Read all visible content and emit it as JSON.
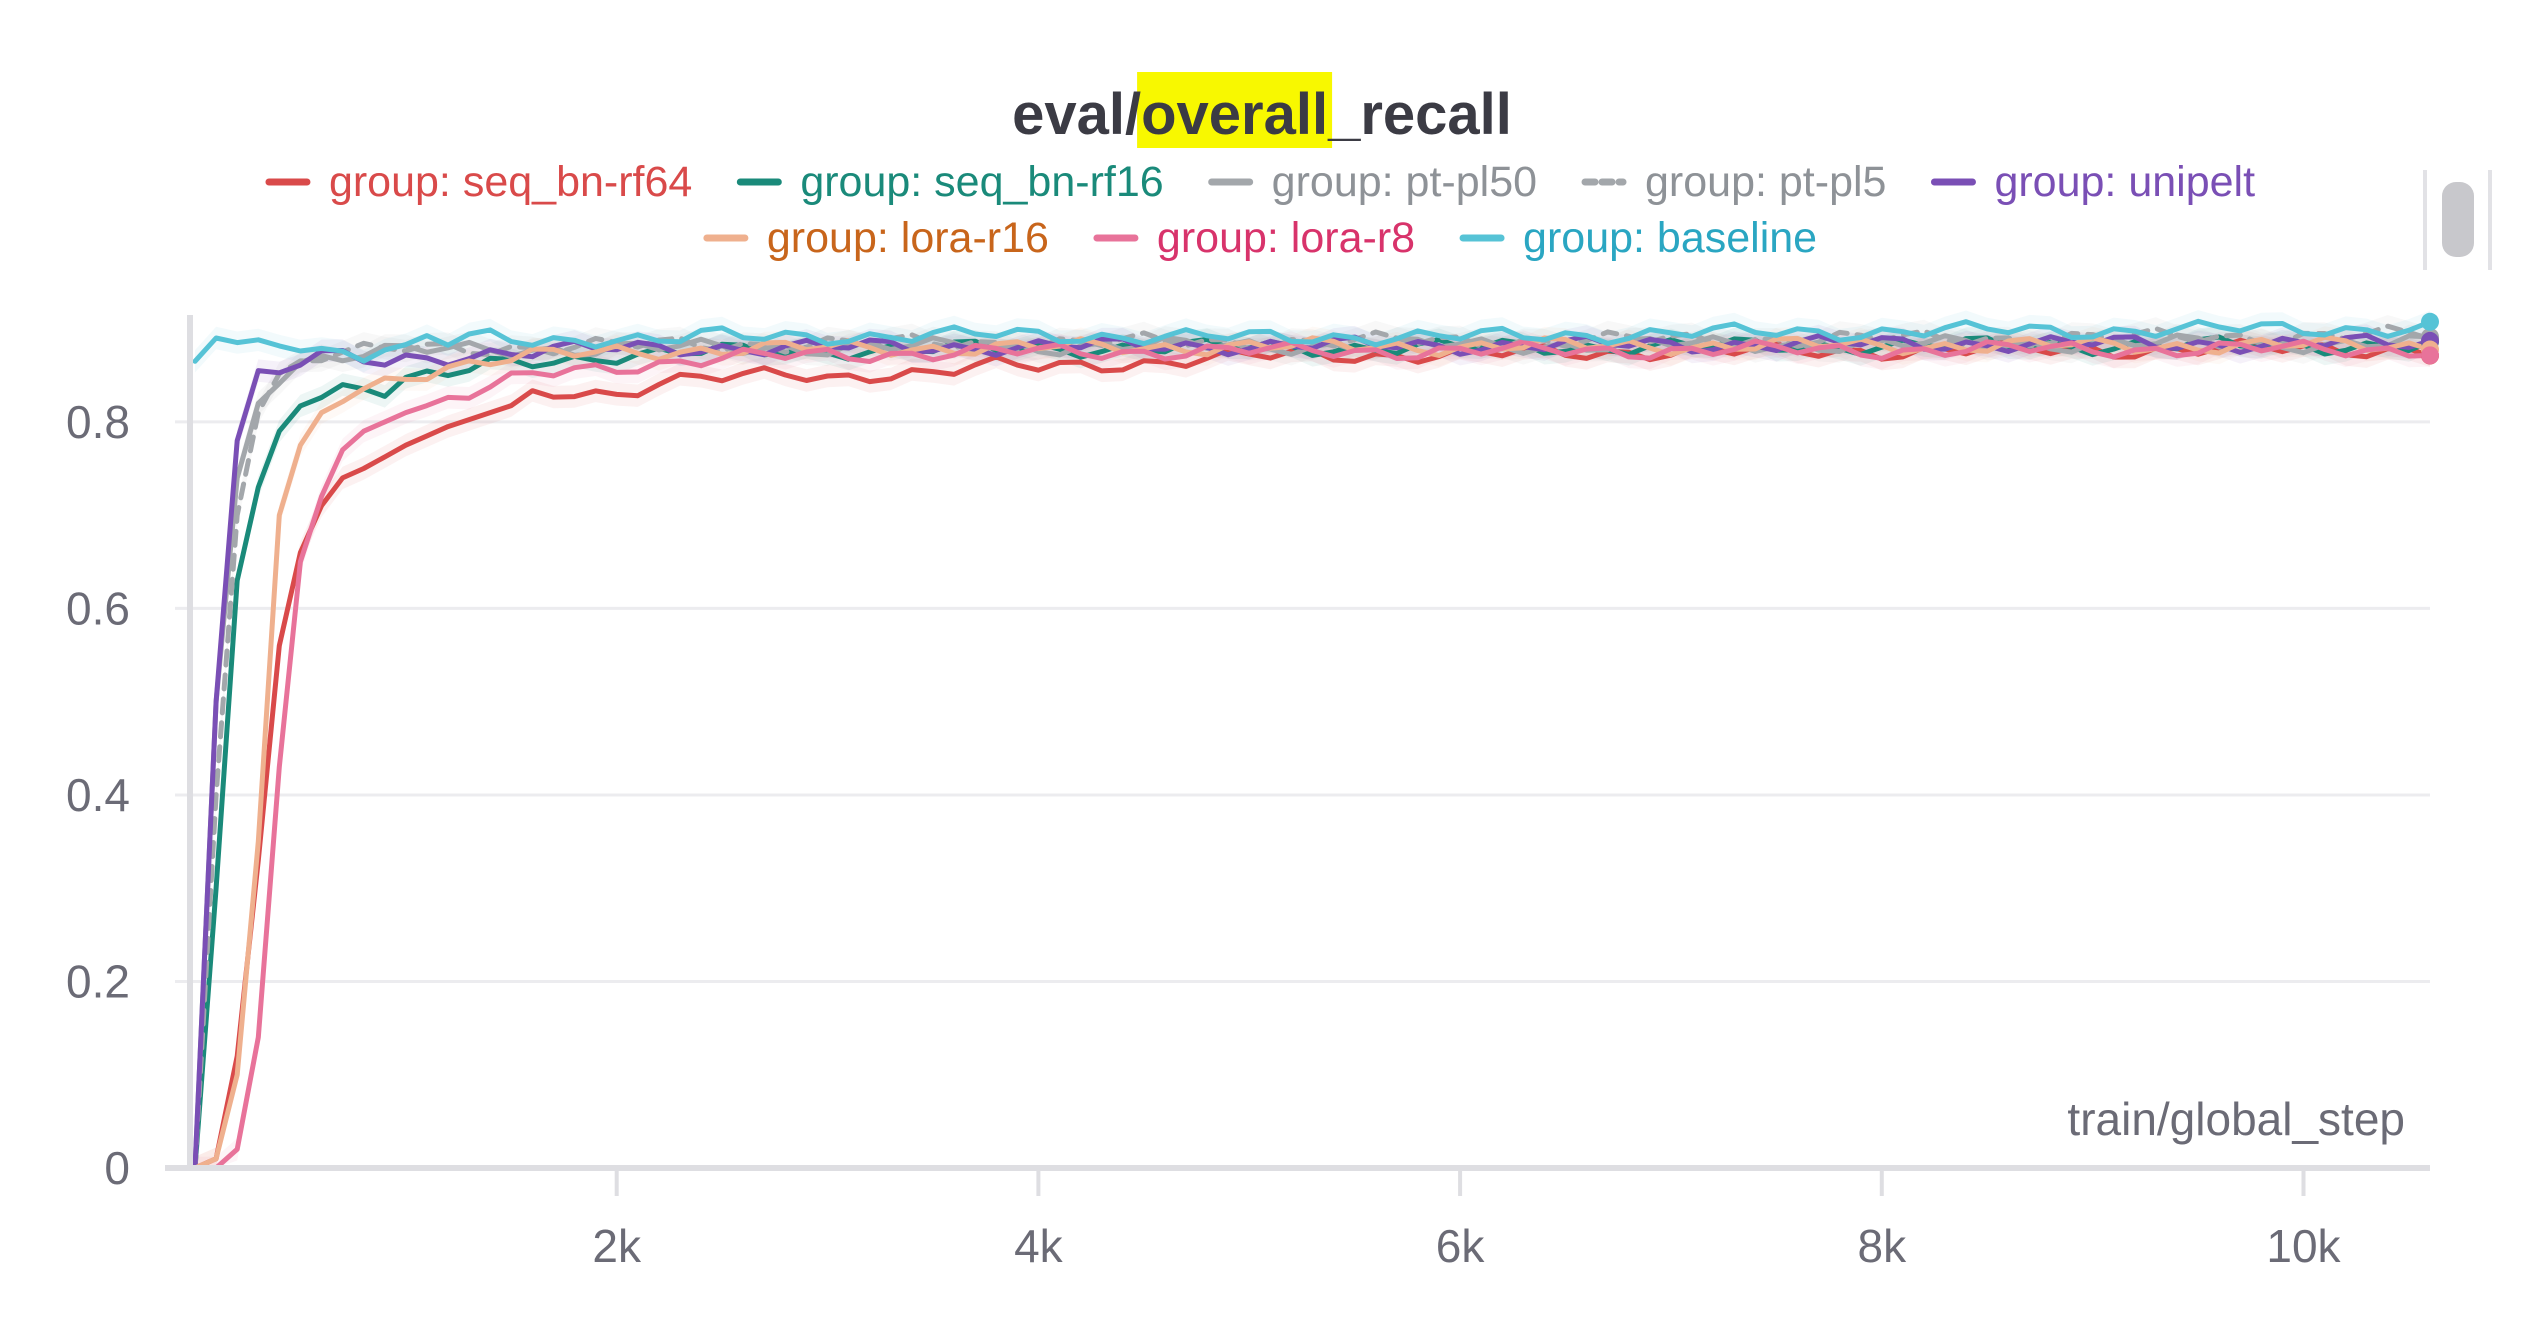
{
  "chart_data": {
    "type": "line",
    "title_parts": {
      "prefix": "eval/",
      "highlight": "overall",
      "suffix": "_recall"
    },
    "highlight_color": "#f8f800",
    "xlabel": "train/global_step",
    "ylabel": "",
    "xlim": [
      0,
      10600
    ],
    "ylim": [
      0,
      0.92
    ],
    "x_ticks": [
      {
        "value": 2000,
        "label": "2k"
      },
      {
        "value": 4000,
        "label": "4k"
      },
      {
        "value": 6000,
        "label": "6k"
      },
      {
        "value": 8000,
        "label": "8k"
      },
      {
        "value": 10000,
        "label": "10k"
      }
    ],
    "y_ticks": [
      {
        "value": 0,
        "label": "0"
      },
      {
        "value": 0.2,
        "label": "0.2"
      },
      {
        "value": 0.4,
        "label": "0.4"
      },
      {
        "value": 0.6,
        "label": "0.6"
      },
      {
        "value": 0.8,
        "label": "0.8"
      }
    ],
    "grid": true,
    "legend_position": "top",
    "series": [
      {
        "key": "seq_bn_rf64",
        "name": "group: seq_bn-rf64",
        "color": "#d94a4a",
        "text_color": "#d94a4a",
        "dashed": false,
        "points": [
          [
            0,
            0
          ],
          [
            100,
            0.01
          ],
          [
            200,
            0.12
          ],
          [
            300,
            0.33
          ],
          [
            400,
            0.56
          ],
          [
            500,
            0.66
          ],
          [
            600,
            0.71
          ],
          [
            700,
            0.74
          ],
          [
            800,
            0.75
          ],
          [
            1000,
            0.775
          ],
          [
            1200,
            0.795
          ],
          [
            1400,
            0.81
          ],
          [
            1600,
            0.825
          ],
          [
            1800,
            0.832
          ],
          [
            2000,
            0.83
          ],
          [
            2200,
            0.845
          ],
          [
            2400,
            0.848
          ],
          [
            2600,
            0.847
          ],
          [
            2800,
            0.85
          ],
          [
            3000,
            0.846
          ],
          [
            3200,
            0.852
          ],
          [
            3500,
            0.854
          ],
          [
            3800,
            0.86
          ],
          [
            4000,
            0.858
          ],
          [
            4300,
            0.862
          ],
          [
            4600,
            0.865
          ],
          [
            5000,
            0.87
          ],
          [
            5500,
            0.872
          ],
          [
            6000,
            0.872
          ],
          [
            6500,
            0.874
          ],
          [
            7000,
            0.876
          ],
          [
            7500,
            0.875
          ],
          [
            8000,
            0.876
          ],
          [
            8500,
            0.877
          ],
          [
            9000,
            0.877
          ],
          [
            9500,
            0.878
          ],
          [
            10000,
            0.878
          ],
          [
            10600,
            0.878
          ]
        ]
      },
      {
        "key": "seq_bn_rf16",
        "name": "group: seq_bn-rf16",
        "color": "#1a8a7a",
        "text_color": "#1a8a7a",
        "dashed": false,
        "points": [
          [
            0,
            0
          ],
          [
            100,
            0.3
          ],
          [
            200,
            0.63
          ],
          [
            300,
            0.73
          ],
          [
            400,
            0.79
          ],
          [
            500,
            0.825
          ],
          [
            600,
            0.83
          ],
          [
            700,
            0.838
          ],
          [
            800,
            0.84
          ],
          [
            900,
            0.835
          ],
          [
            1000,
            0.845
          ],
          [
            1200,
            0.85
          ],
          [
            1400,
            0.86
          ],
          [
            1600,
            0.865
          ],
          [
            1800,
            0.868
          ],
          [
            2000,
            0.872
          ],
          [
            2500,
            0.875
          ],
          [
            3000,
            0.877
          ],
          [
            3500,
            0.878
          ],
          [
            4000,
            0.879
          ],
          [
            5000,
            0.88
          ],
          [
            6000,
            0.88
          ],
          [
            7000,
            0.881
          ],
          [
            8000,
            0.882
          ],
          [
            9000,
            0.882
          ],
          [
            10000,
            0.882
          ],
          [
            10600,
            0.882
          ]
        ]
      },
      {
        "key": "pt_pl50",
        "name": "group: pt-pl50",
        "color": "#a3a7ab",
        "text_color": "#8e9297",
        "dashed": false,
        "points": [
          [
            0,
            0
          ],
          [
            100,
            0.5
          ],
          [
            200,
            0.74
          ],
          [
            300,
            0.82
          ],
          [
            400,
            0.85
          ],
          [
            500,
            0.865
          ],
          [
            600,
            0.87
          ],
          [
            700,
            0.872
          ],
          [
            800,
            0.874
          ],
          [
            1000,
            0.876
          ],
          [
            1500,
            0.878
          ],
          [
            2000,
            0.879
          ],
          [
            3000,
            0.88
          ],
          [
            4000,
            0.881
          ],
          [
            5000,
            0.882
          ],
          [
            6000,
            0.882
          ],
          [
            7000,
            0.883
          ],
          [
            8000,
            0.883
          ],
          [
            9000,
            0.884
          ],
          [
            10000,
            0.884
          ],
          [
            10600,
            0.884
          ]
        ]
      },
      {
        "key": "pt_pl5",
        "name": "group: pt-pl5",
        "color": "#a3a7ab",
        "text_color": "#8e9297",
        "dashed": true,
        "points": [
          [
            0,
            0
          ],
          [
            100,
            0.4
          ],
          [
            200,
            0.7
          ],
          [
            300,
            0.81
          ],
          [
            400,
            0.85
          ],
          [
            500,
            0.866
          ],
          [
            600,
            0.872
          ],
          [
            800,
            0.875
          ],
          [
            1000,
            0.878
          ],
          [
            1500,
            0.88
          ],
          [
            2000,
            0.882
          ],
          [
            3000,
            0.884
          ],
          [
            4000,
            0.885
          ],
          [
            5000,
            0.886
          ],
          [
            6000,
            0.887
          ],
          [
            7000,
            0.888
          ],
          [
            8000,
            0.889
          ],
          [
            9000,
            0.89
          ],
          [
            10000,
            0.892
          ],
          [
            10600,
            0.893
          ]
        ]
      },
      {
        "key": "unipelt",
        "name": "group: unipelt",
        "color": "#7a4fb5",
        "text_color": "#7a4fb5",
        "dashed": false,
        "points": [
          [
            0,
            0
          ],
          [
            100,
            0.5
          ],
          [
            200,
            0.78
          ],
          [
            300,
            0.855
          ],
          [
            400,
            0.855
          ],
          [
            500,
            0.865
          ],
          [
            600,
            0.87
          ],
          [
            700,
            0.868
          ],
          [
            800,
            0.865
          ],
          [
            900,
            0.862
          ],
          [
            1000,
            0.866
          ],
          [
            1200,
            0.87
          ],
          [
            1400,
            0.875
          ],
          [
            1600,
            0.876
          ],
          [
            1800,
            0.878
          ],
          [
            2000,
            0.878
          ],
          [
            2500,
            0.88
          ],
          [
            3000,
            0.88
          ],
          [
            4000,
            0.881
          ],
          [
            5000,
            0.882
          ],
          [
            6000,
            0.882
          ],
          [
            7000,
            0.883
          ],
          [
            8000,
            0.884
          ],
          [
            9000,
            0.884
          ],
          [
            10000,
            0.884
          ],
          [
            10600,
            0.884
          ]
        ]
      },
      {
        "key": "lora_r16",
        "name": "group: lora-r16",
        "color": "#efb08e",
        "text_color": "#c8651b",
        "dashed": false,
        "points": [
          [
            0,
            0
          ],
          [
            100,
            0.01
          ],
          [
            200,
            0.1
          ],
          [
            300,
            0.35
          ],
          [
            400,
            0.7
          ],
          [
            500,
            0.775
          ],
          [
            600,
            0.81
          ],
          [
            700,
            0.825
          ],
          [
            800,
            0.835
          ],
          [
            1000,
            0.85
          ],
          [
            1200,
            0.86
          ],
          [
            1400,
            0.866
          ],
          [
            1600,
            0.87
          ],
          [
            2000,
            0.875
          ],
          [
            2500,
            0.878
          ],
          [
            3000,
            0.879
          ],
          [
            4000,
            0.88
          ],
          [
            5000,
            0.881
          ],
          [
            6000,
            0.881
          ],
          [
            7000,
            0.882
          ],
          [
            8000,
            0.882
          ],
          [
            9000,
            0.882
          ],
          [
            10000,
            0.882
          ],
          [
            10600,
            0.882
          ]
        ]
      },
      {
        "key": "lora_r8",
        "name": "group: lora-r8",
        "color": "#e8739a",
        "text_color": "#d8336b",
        "dashed": false,
        "points": [
          [
            0,
            0
          ],
          [
            100,
            0
          ],
          [
            200,
            0.02
          ],
          [
            300,
            0.14
          ],
          [
            400,
            0.43
          ],
          [
            500,
            0.65
          ],
          [
            600,
            0.72
          ],
          [
            700,
            0.77
          ],
          [
            800,
            0.79
          ],
          [
            1000,
            0.81
          ],
          [
            1200,
            0.825
          ],
          [
            1400,
            0.835
          ],
          [
            1600,
            0.85
          ],
          [
            1800,
            0.855
          ],
          [
            2000,
            0.86
          ],
          [
            2500,
            0.868
          ],
          [
            3000,
            0.872
          ],
          [
            3500,
            0.874
          ],
          [
            4000,
            0.875
          ],
          [
            5000,
            0.876
          ],
          [
            6000,
            0.876
          ],
          [
            7000,
            0.877
          ],
          [
            8000,
            0.877
          ],
          [
            9000,
            0.878
          ],
          [
            10000,
            0.878
          ],
          [
            10600,
            0.878
          ]
        ]
      },
      {
        "key": "baseline",
        "name": "group: baseline",
        "color": "#56c3d6",
        "text_color": "#2aa6c2",
        "dashed": false,
        "points": [
          [
            0,
            0.865
          ],
          [
            100,
            0.89
          ],
          [
            200,
            0.885
          ],
          [
            300,
            0.888
          ],
          [
            400,
            0.885
          ],
          [
            500,
            0.88
          ],
          [
            600,
            0.876
          ],
          [
            700,
            0.878
          ],
          [
            800,
            0.875
          ],
          [
            900,
            0.88
          ],
          [
            1000,
            0.878
          ],
          [
            1100,
            0.893
          ],
          [
            1200,
            0.885
          ],
          [
            1400,
            0.89
          ],
          [
            1600,
            0.885
          ],
          [
            1800,
            0.888
          ],
          [
            2000,
            0.892
          ],
          [
            2200,
            0.888
          ],
          [
            2400,
            0.893
          ],
          [
            2600,
            0.89
          ],
          [
            3000,
            0.892
          ],
          [
            3500,
            0.893
          ],
          [
            4000,
            0.893
          ],
          [
            4500,
            0.892
          ],
          [
            5000,
            0.89
          ],
          [
            5500,
            0.892
          ],
          [
            6000,
            0.891
          ],
          [
            6500,
            0.893
          ],
          [
            7000,
            0.895
          ],
          [
            7500,
            0.896
          ],
          [
            8000,
            0.897
          ],
          [
            8500,
            0.898
          ],
          [
            9000,
            0.898
          ],
          [
            9500,
            0.899
          ],
          [
            10000,
            0.9
          ],
          [
            10600,
            0.9
          ]
        ]
      }
    ]
  }
}
